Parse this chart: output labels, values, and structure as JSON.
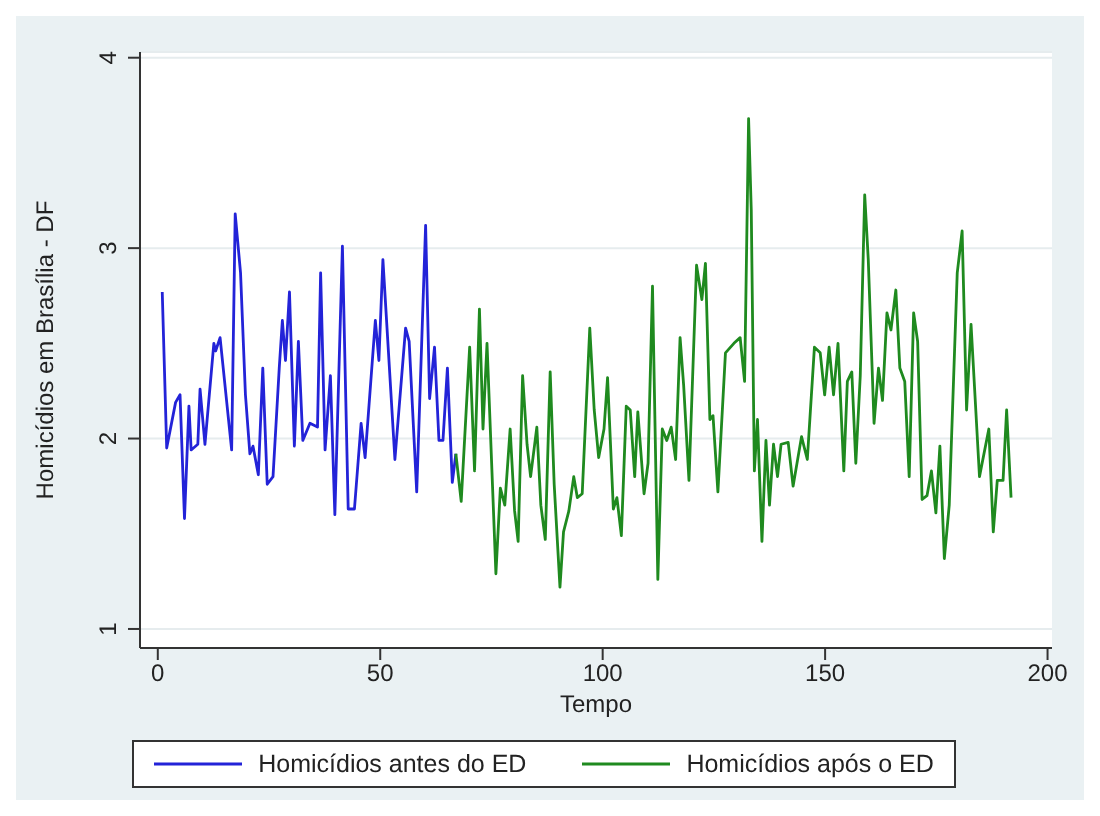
{
  "chart_data": {
    "type": "line",
    "xlabel": "Tempo",
    "ylabel": "Homicídios em Brasília - DF",
    "xlim": [
      -4,
      201
    ],
    "ylim": [
      0.9,
      4.03
    ],
    "xticks": [
      0,
      50,
      100,
      150,
      200
    ],
    "yticks": [
      1,
      2,
      3,
      4
    ],
    "grid": "y",
    "legend": "bottom",
    "series": [
      {
        "name": "Homicídios antes do ED",
        "color": "#2323d8",
        "x": [
          1,
          2,
          4,
          5,
          6,
          7,
          7.5,
          9,
          9.5,
          10.6,
          12.6,
          13,
          14,
          16.6,
          17.4,
          18.6,
          19.7,
          20.7,
          21.4,
          22.6,
          23.6,
          24.6,
          25.9,
          27.3,
          28,
          28.7,
          29.6,
          30.7,
          31.6,
          32.6,
          34.2,
          35.9,
          36.6,
          37.6,
          38.8,
          39.8,
          41.5,
          42.8,
          44.2,
          45.7,
          46.6,
          48.9,
          49.7,
          50.6,
          53.3,
          55.7,
          56.5,
          58.2,
          60.2,
          61.1,
          62.2,
          63.2,
          64.1,
          65.1,
          66.2,
          67
        ],
        "values": [
          2.77,
          1.95,
          2.19,
          2.23,
          1.58,
          2.17,
          1.94,
          1.97,
          2.26,
          1.97,
          2.5,
          2.46,
          2.53,
          1.94,
          3.18,
          2.87,
          2.23,
          1.92,
          1.96,
          1.81,
          2.37,
          1.76,
          1.8,
          2.37,
          2.62,
          2.41,
          2.77,
          1.96,
          2.51,
          1.99,
          2.08,
          2.06,
          2.87,
          1.94,
          2.33,
          1.6,
          3.01,
          1.63,
          1.63,
          2.08,
          1.9,
          2.62,
          2.41,
          2.94,
          1.89,
          2.58,
          2.51,
          1.72,
          3.12,
          2.21,
          2.48,
          1.99,
          1.99,
          2.37,
          1.77,
          1.92
        ]
      },
      {
        "name": "Homicídios após o ED",
        "color": "#1f8a1f",
        "x": [
          67,
          68.2,
          70.1,
          71.2,
          72.3,
          73.1,
          74,
          76,
          77,
          78,
          79.2,
          80.2,
          81,
          82,
          83,
          83.8,
          85.2,
          86.1,
          87.1,
          88.2,
          89.1,
          90.4,
          91.2,
          92.4,
          93.5,
          94.3,
          95.4,
          97.1,
          98.1,
          99.1,
          100.3,
          101.1,
          102.4,
          103.2,
          104.2,
          105.3,
          106.2,
          107.2,
          107.9,
          109.3,
          110.2,
          111.2,
          112.4,
          113.4,
          114.4,
          115.4,
          116.4,
          117.4,
          118.2,
          119.4,
          121.1,
          122.3,
          123.1,
          124.1,
          124.8,
          125.9,
          127.6,
          129.5,
          130.9,
          131.9,
          132.8,
          133.4,
          134.1,
          134.8,
          135.8,
          136.7,
          137.5,
          138.4,
          139.3,
          140.1,
          141.7,
          142.8,
          144.7,
          146,
          147.6,
          148.9,
          149.9,
          150.9,
          151.9,
          152.9,
          154.2,
          155,
          156,
          156.9,
          157.9,
          158.9,
          159.7,
          161,
          162,
          162.9,
          163.9,
          164.8,
          165.9,
          166.8,
          167.9,
          168.9,
          169.9,
          170.8,
          171.8,
          172.9,
          173.9,
          174.9,
          175.8,
          176.8,
          177.9,
          179.7,
          180.8,
          181.8,
          182.8,
          184.7,
          186.8,
          187.8,
          188.7,
          190,
          190.8,
          191.8
        ],
        "values": [
          1.92,
          1.67,
          2.48,
          1.83,
          2.68,
          2.05,
          2.5,
          1.29,
          1.74,
          1.65,
          2.05,
          1.62,
          1.46,
          2.33,
          1.97,
          1.8,
          2.06,
          1.65,
          1.47,
          2.35,
          1.76,
          1.22,
          1.51,
          1.62,
          1.8,
          1.69,
          1.71,
          2.58,
          2.15,
          1.9,
          2.05,
          2.32,
          1.63,
          1.69,
          1.49,
          2.17,
          2.15,
          1.8,
          2.14,
          1.71,
          1.87,
          2.8,
          1.26,
          2.05,
          1.99,
          2.06,
          1.89,
          2.53,
          2.28,
          1.78,
          2.91,
          2.73,
          2.92,
          2.1,
          2.12,
          1.72,
          2.45,
          2.5,
          2.53,
          2.3,
          3.68,
          3.2,
          1.83,
          2.1,
          1.46,
          1.99,
          1.65,
          1.97,
          1.8,
          1.97,
          1.98,
          1.75,
          2.01,
          1.89,
          2.48,
          2.45,
          2.23,
          2.48,
          2.23,
          2.5,
          1.83,
          2.3,
          2.35,
          1.87,
          2.33,
          3.28,
          2.94,
          2.08,
          2.37,
          2.2,
          2.66,
          2.57,
          2.78,
          2.37,
          2.3,
          1.8,
          2.66,
          2.51,
          1.68,
          1.7,
          1.83,
          1.61,
          1.96,
          1.37,
          1.65,
          2.87,
          3.09,
          2.15,
          2.6,
          1.8,
          2.05,
          1.51,
          1.78,
          1.78,
          2.15,
          1.69
        ]
      }
    ]
  }
}
